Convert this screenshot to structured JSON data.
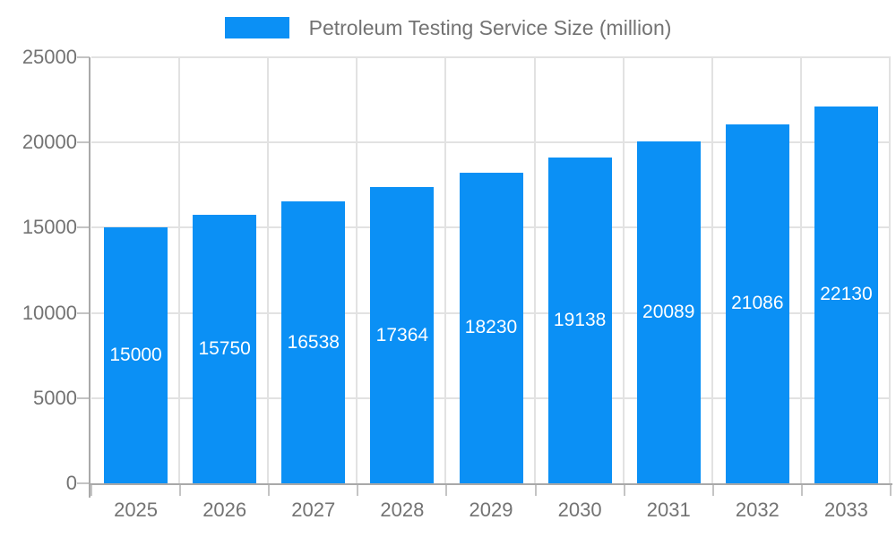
{
  "chart_data": {
    "type": "bar",
    "title": "Petroleum Testing Service Size (million)",
    "categories": [
      "2025",
      "2026",
      "2027",
      "2028",
      "2029",
      "2030",
      "2031",
      "2032",
      "2033"
    ],
    "series": [
      {
        "name": "Petroleum Testing Service Size (million)",
        "values": [
          15000,
          15750,
          16538,
          17364,
          18230,
          19138,
          20089,
          21086,
          22130
        ]
      }
    ],
    "xlabel": "",
    "ylabel": "",
    "ylim": [
      0,
      25000
    ],
    "yticks": [
      0,
      5000,
      10000,
      15000,
      20000,
      25000
    ],
    "grid": true,
    "legend_position": "top-center",
    "value_labels_position": "inside-center"
  },
  "colors": {
    "bar": "#0b90f5",
    "grid": "#e2e2e2",
    "axis": "#a9a9a9",
    "tick_mark": "#c4c4c4",
    "tick_text": "#737373",
    "value_text": "#ffffff",
    "background": "#ffffff"
  }
}
